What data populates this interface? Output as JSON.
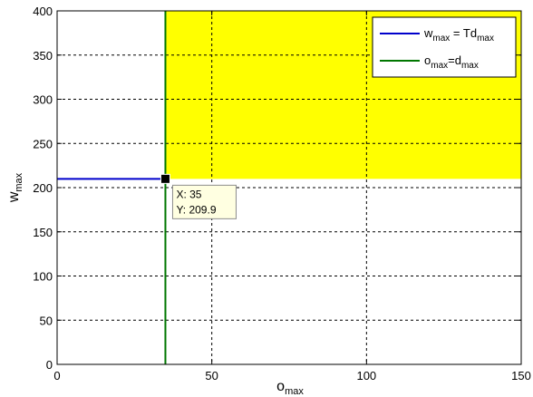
{
  "chart_data": {
    "type": "line",
    "xlabel": "o",
    "xlabel_sub": "max",
    "ylabel": "w",
    "ylabel_sub": "max",
    "xlim": [
      0,
      150
    ],
    "ylim": [
      0,
      400
    ],
    "xticks": [
      0,
      50,
      100,
      150
    ],
    "yticks": [
      0,
      50,
      100,
      150,
      200,
      250,
      300,
      350,
      400
    ],
    "grid": true,
    "grid_style": "dashed",
    "legend_position": "top-right",
    "region": {
      "x": [
        35,
        150
      ],
      "y": [
        209.9,
        400
      ],
      "color": "#ffff00"
    },
    "series": [
      {
        "name_main": "w",
        "name_sub1": "max",
        "name_mid": " = Td",
        "name_sub2": "max",
        "color": "#0000cc",
        "x": [
          0,
          35
        ],
        "y": [
          209.9,
          209.9
        ]
      },
      {
        "name_main": "o",
        "name_sub1": "max",
        "name_mid": "=d",
        "name_sub2": "max",
        "color": "#007700",
        "x": [
          35,
          35
        ],
        "y": [
          0,
          400
        ]
      }
    ],
    "datatip": {
      "x": 35,
      "y": 209.9,
      "x_label": "X: 35",
      "y_label": "Y: 209.9"
    }
  }
}
